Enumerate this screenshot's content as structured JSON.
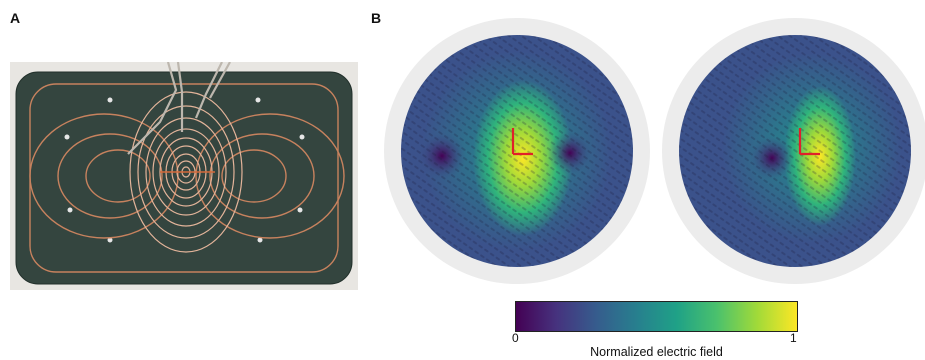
{
  "panels": {
    "a_label": "A",
    "b_label": "B"
  },
  "colorbar": {
    "min_label": "0",
    "max_label": "1",
    "title": "Normalized electric field",
    "colormap": "viridis",
    "stops": [
      "#440154",
      "#46327e",
      "#365c8d",
      "#277f8e",
      "#1fa187",
      "#4ac16d",
      "#a0da39",
      "#fde725"
    ]
  },
  "colors": {
    "board": "#34453f",
    "frame": "#e8e6e2",
    "copper": "#c7825e",
    "sphere_rim": "#ececec",
    "axis_marker": "#e0202a"
  }
}
